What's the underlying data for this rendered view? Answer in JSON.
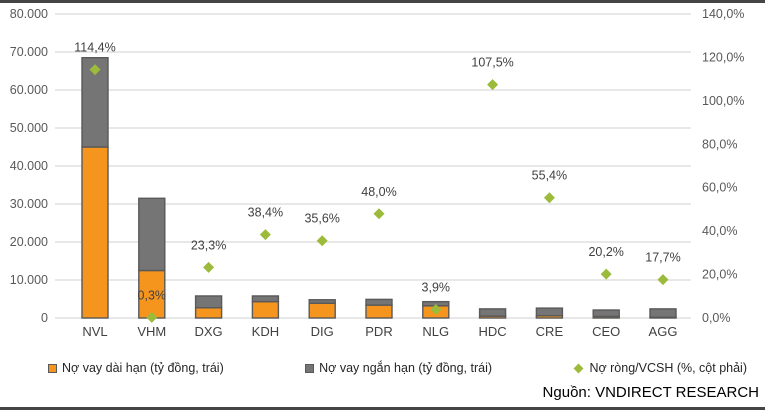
{
  "chart_data": {
    "type": "bar",
    "stacked": true,
    "grid": true,
    "legend_position": "bottom",
    "categories": [
      "NVL",
      "VHM",
      "DXG",
      "KDH",
      "DIG",
      "PDR",
      "NLG",
      "HDC",
      "CRE",
      "CEO",
      "AGG"
    ],
    "series": [
      {
        "name": "Nợ vay dài hạn (tỷ đồng, trái)",
        "type": "bar",
        "axis": "left",
        "color": "#F6951E",
        "values": [
          45000,
          12500,
          2700,
          4300,
          3900,
          3400,
          3200,
          500,
          600,
          400,
          200
        ]
      },
      {
        "name": "Nợ vay ngắn hạn (tỷ đồng, trái)",
        "type": "bar",
        "axis": "left",
        "color": "#757575",
        "values": [
          23500,
          19000,
          3100,
          1500,
          900,
          1500,
          1100,
          1900,
          2000,
          1700,
          2200
        ]
      },
      {
        "name": "Nợ ròng/VCSH (%, cột phải)",
        "type": "scatter",
        "marker": "diamond",
        "axis": "right",
        "color": "#9CBB3B",
        "values": [
          114.4,
          0.3,
          23.3,
          38.4,
          35.6,
          48.0,
          3.9,
          107.5,
          55.4,
          20.2,
          17.7
        ],
        "labels": [
          "114,4%",
          "0,3%",
          "23,3%",
          "38,4%",
          "35,6%",
          "48,0%",
          "3,9%",
          "107,5%",
          "55,4%",
          "20,2%",
          "17,7%"
        ]
      }
    ],
    "left_axis": {
      "min": 0,
      "max": 80000,
      "step": 10000,
      "tick_labels": [
        "0",
        "10.000",
        "20.000",
        "30.000",
        "40.000",
        "50.000",
        "60.000",
        "70.000",
        "80.000"
      ]
    },
    "right_axis": {
      "min": 0,
      "max": 140,
      "step": 20,
      "tick_labels": [
        "0,0%",
        "20,0%",
        "40,0%",
        "60,0%",
        "80,0%",
        "100,0%",
        "120,0%",
        "140,0%"
      ]
    }
  },
  "source": {
    "label": "Nguồn: VNDIRECT RESEARCH"
  },
  "colors": {
    "long_term_bar": "#F6951E",
    "short_term_bar": "#757575",
    "bar_stroke": "#595959",
    "marker_green": "#9CBB3B",
    "gridline": "#D9D9D9",
    "tick_text": "#595959",
    "label_text": "#404040",
    "frame_line": "#454545"
  }
}
